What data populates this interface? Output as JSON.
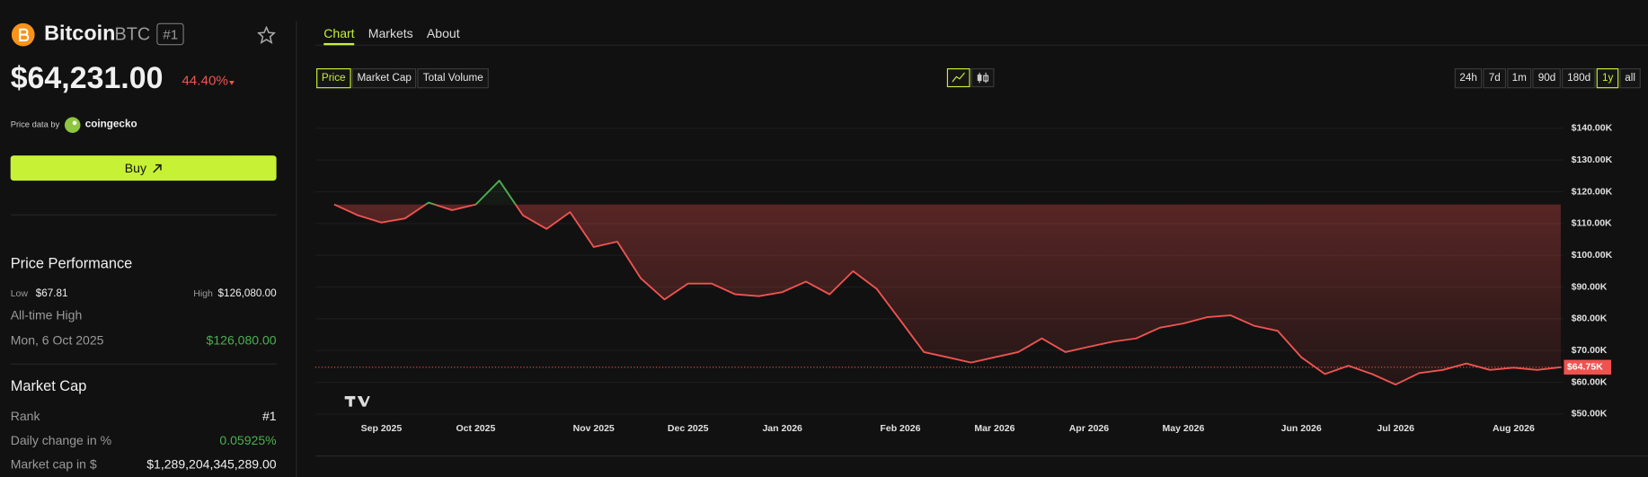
{
  "header": {
    "name": "Bitcoin",
    "symbol": "BTC",
    "rank": "#1",
    "price": "$64,231.00",
    "change": "44.40%",
    "source_prefix": "Price data by",
    "source": "coingecko",
    "buy": "Buy"
  },
  "performance": {
    "title": "Price Performance",
    "low_label": "Low",
    "low": "$67.81",
    "high_label": "High",
    "high": "$126,080.00",
    "ath_label": "All-time High",
    "ath_date": "Mon, 6 Oct 2025",
    "ath_value": "$126,080.00"
  },
  "market_cap": {
    "title": "Market Cap",
    "rows": [
      [
        "Rank",
        "#1"
      ],
      [
        "Daily change in %",
        "0.05925%"
      ],
      [
        "Market cap in $",
        "$1,289,204,345,289.00"
      ]
    ]
  },
  "tabs": [
    "Chart",
    "Markets",
    "About"
  ],
  "metrics": [
    "Price",
    "Market Cap",
    "Total Volume"
  ],
  "ranges": [
    "24h",
    "7d",
    "1m",
    "90d",
    "180d",
    "1y",
    "all"
  ],
  "chart_data": {
    "type": "line",
    "categories": [
      null,
      null,
      "Sep 2025",
      null,
      null,
      null,
      "Oct 2025",
      null,
      null,
      null,
      null,
      "Nov 2025",
      null,
      null,
      null,
      "Dec 2025",
      null,
      null,
      null,
      "Jan 2026",
      null,
      null,
      null,
      null,
      "Feb 2026",
      null,
      null,
      null,
      "Mar 2026",
      null,
      null,
      null,
      "Apr 2026",
      null,
      null,
      null,
      "May 2026",
      null,
      null,
      null,
      null,
      "Jun 2026",
      null,
      null,
      null,
      "Jul 2026",
      null,
      null,
      null,
      null,
      "Aug 2026",
      null,
      null
    ],
    "series": [
      {
        "name": "Price",
        "color": "#ef5350",
        "up_color": "#4caf50",
        "values": [
          116000,
          112600,
          110300,
          111600,
          116600,
          114200,
          116000,
          123500,
          112600,
          108300,
          113600,
          102600,
          104300,
          92700,
          86100,
          91100,
          91100,
          87700,
          87100,
          88400,
          91700,
          87700,
          95000,
          89400,
          79500,
          69500,
          67900,
          66200,
          67900,
          69500,
          73800,
          69500,
          71200,
          72800,
          73800,
          77200,
          78500,
          80500,
          81100,
          77800,
          76200,
          67900,
          62600,
          65200,
          62600,
          59300,
          62900,
          63900,
          65900,
          63900,
          64600,
          63900,
          64750
        ]
      }
    ],
    "current": {
      "value": 64750,
      "label": "$64.75K"
    },
    "ylim": [
      48700,
      147300
    ],
    "yticks": [
      {
        "value": 50000,
        "label": "$50.00K"
      },
      {
        "value": 60000,
        "label": "$60.00K"
      },
      {
        "value": 70000,
        "label": "$70.00K"
      },
      {
        "value": 80000,
        "label": "$80.00K"
      },
      {
        "value": 90000,
        "label": "$90.00K"
      },
      {
        "value": 100000,
        "label": "$100.00K"
      },
      {
        "value": 110000,
        "label": "$110.00K"
      },
      {
        "value": 120000,
        "label": "$120.00K"
      },
      {
        "value": 130000,
        "label": "$130.00K"
      },
      {
        "value": 140000,
        "label": "$140.00K"
      }
    ],
    "grid": true
  }
}
